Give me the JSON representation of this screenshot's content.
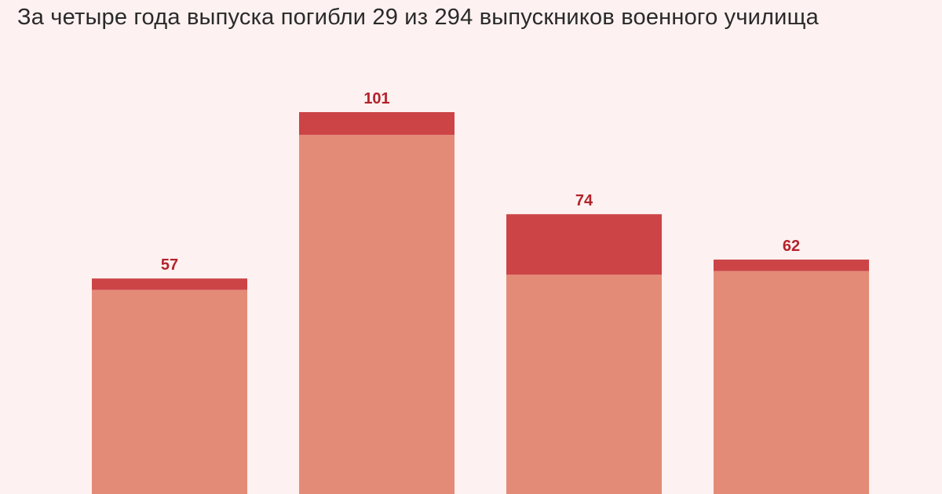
{
  "title": "За четыре года выпуска погибли 29 из 294 выпускников военного училища",
  "colors": {
    "background": "#fdf1f1",
    "base": "#e48b78",
    "highlight": "#cc4446",
    "label": "#b3232b"
  },
  "chart_data": {
    "type": "bar",
    "stacked": true,
    "categories": [
      "",
      "",
      "",
      ""
    ],
    "totals": [
      57,
      101,
      74,
      62
    ],
    "series": [
      {
        "values": [
          54,
          95,
          58,
          59
        ]
      },
      {
        "values": [
          3,
          6,
          16,
          3
        ]
      }
    ],
    "title": "За четыре года выпуска погибли 29 из 294 выпускников военного училища",
    "xlabel": "",
    "ylabel": "",
    "ylim": [
      0,
      101
    ],
    "grid": false,
    "legend": "none"
  }
}
